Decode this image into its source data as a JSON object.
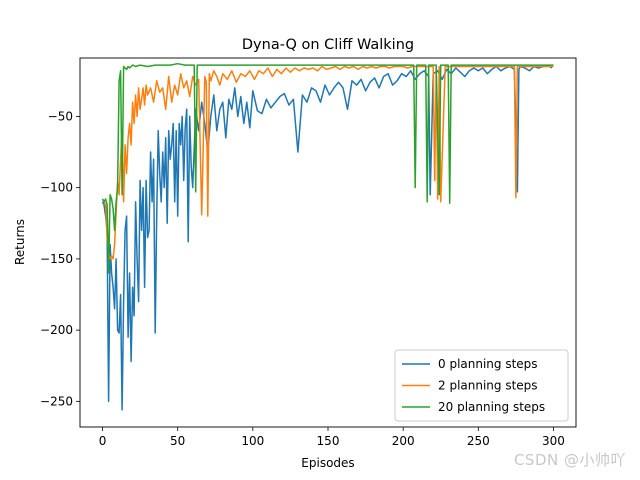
{
  "chart_data": {
    "type": "line",
    "title": "Dyna-Q on Cliff Walking",
    "xlabel": "Episodes",
    "ylabel": "Returns",
    "xlim": [
      -15,
      315
    ],
    "ylim": [
      -268,
      -9
    ],
    "xticks": [
      0,
      50,
      100,
      150,
      200,
      250,
      300
    ],
    "yticks": [
      -250,
      -200,
      -150,
      -100,
      -50
    ],
    "legend_position": "lower right",
    "series": [
      {
        "name": "0 planning steps",
        "color": "#1f77b4",
        "x": [
          0,
          1,
          2,
          3,
          4,
          5,
          6,
          7,
          8,
          9,
          10,
          11,
          12,
          13,
          14,
          15,
          16,
          17,
          18,
          19,
          20,
          21,
          22,
          23,
          24,
          25,
          26,
          27,
          28,
          29,
          30,
          31,
          32,
          33,
          34,
          35,
          36,
          37,
          38,
          39,
          40,
          41,
          42,
          43,
          44,
          45,
          46,
          47,
          48,
          49,
          50,
          51,
          52,
          53,
          54,
          55,
          56,
          57,
          58,
          59,
          60,
          62,
          64,
          66,
          68,
          70,
          72,
          74,
          76,
          78,
          80,
          82,
          84,
          86,
          88,
          90,
          92,
          94,
          96,
          98,
          100,
          103,
          106,
          109,
          112,
          115,
          118,
          121,
          124,
          127,
          130,
          133,
          136,
          139,
          142,
          145,
          148,
          151,
          154,
          157,
          160,
          163,
          166,
          169,
          172,
          175,
          178,
          181,
          184,
          187,
          190,
          193,
          196,
          199,
          202,
          205,
          208,
          211,
          214,
          217,
          218,
          220,
          223,
          226,
          229,
          232,
          235,
          238,
          241,
          244,
          247,
          250,
          253,
          256,
          259,
          262,
          265,
          268,
          271,
          274,
          276,
          277,
          278,
          281,
          284,
          287,
          290,
          293,
          296,
          299
        ],
        "values": [
          -110,
          -112,
          -120,
          -130,
          -250,
          -140,
          -160,
          -170,
          -185,
          -150,
          -200,
          -202,
          -175,
          -256,
          -180,
          -130,
          -120,
          -205,
          -160,
          -222,
          -170,
          -190,
          -110,
          -150,
          -180,
          -95,
          -130,
          -100,
          -170,
          -95,
          -135,
          -130,
          -75,
          -110,
          -80,
          -202,
          -120,
          -60,
          -90,
          -110,
          -75,
          -100,
          -65,
          -125,
          -60,
          -80,
          -70,
          -55,
          -110,
          -60,
          -120,
          -55,
          -70,
          -50,
          -95,
          -58,
          -45,
          -138,
          -50,
          -85,
          -100,
          -45,
          -60,
          -40,
          -55,
          -75,
          -50,
          -35,
          -60,
          -45,
          -40,
          -65,
          -38,
          -45,
          -30,
          -50,
          -36,
          -55,
          -40,
          -58,
          -32,
          -46,
          -48,
          -38,
          -44,
          -40,
          -36,
          -34,
          -42,
          -38,
          -75,
          -35,
          -40,
          -30,
          -32,
          -40,
          -28,
          -35,
          -30,
          -26,
          -30,
          -45,
          -25,
          -28,
          -24,
          -32,
          -26,
          -23,
          -30,
          -22,
          -20,
          -28,
          -25,
          -20,
          -22,
          -18,
          -24,
          -20,
          -18,
          -22,
          -105,
          -20,
          -18,
          -24,
          -17,
          -20,
          -16,
          -19,
          -22,
          -18,
          -16,
          -18,
          -16,
          -20,
          -17,
          -15,
          -18,
          -16,
          -15,
          -17,
          -103,
          -17,
          -15,
          -16,
          -18,
          -15,
          -16,
          -15,
          -14,
          -16
        ]
      },
      {
        "name": "2 planning steps",
        "color": "#ff7f0e",
        "x": [
          0,
          1,
          2,
          3,
          4,
          5,
          6,
          7,
          8,
          9,
          10,
          11,
          12,
          13,
          14,
          15,
          16,
          17,
          18,
          19,
          20,
          21,
          22,
          23,
          24,
          25,
          26,
          27,
          28,
          29,
          30,
          32,
          34,
          36,
          38,
          40,
          42,
          44,
          46,
          48,
          50,
          52,
          54,
          56,
          58,
          60,
          62,
          64,
          66,
          68,
          69,
          70,
          71,
          72,
          74,
          76,
          78,
          80,
          83,
          86,
          89,
          92,
          95,
          98,
          101,
          104,
          107,
          110,
          113,
          116,
          119,
          122,
          125,
          128,
          131,
          134,
          137,
          140,
          143,
          146,
          149,
          152,
          155,
          158,
          161,
          164,
          167,
          170,
          173,
          176,
          179,
          182,
          185,
          188,
          191,
          194,
          197,
          200,
          203,
          206,
          209,
          212,
          215,
          218,
          220,
          221,
          222,
          223,
          224,
          225,
          228,
          231,
          234,
          237,
          240,
          243,
          246,
          249,
          252,
          255,
          258,
          261,
          264,
          267,
          270,
          273,
          274,
          275,
          276,
          277,
          280,
          283,
          286,
          289,
          292,
          295,
          298,
          300
        ],
        "values": [
          -108,
          -110,
          -112,
          -135,
          -145,
          -150,
          -148,
          -150,
          -140,
          -118,
          -95,
          -105,
          -80,
          -60,
          -110,
          -70,
          -90,
          -65,
          -55,
          -70,
          -40,
          -55,
          -35,
          -50,
          -30,
          -45,
          -38,
          -30,
          -42,
          -28,
          -35,
          -30,
          -40,
          -25,
          -33,
          -30,
          -45,
          -22,
          -40,
          -28,
          -35,
          -20,
          -30,
          -25,
          -36,
          -22,
          -28,
          -24,
          -119,
          -22,
          -26,
          -120,
          -20,
          -25,
          -18,
          -22,
          -28,
          -20,
          -24,
          -18,
          -26,
          -20,
          -22,
          -18,
          -24,
          -18,
          -20,
          -16,
          -22,
          -17,
          -20,
          -16,
          -19,
          -16,
          -18,
          -16,
          -17,
          -16,
          -18,
          -15,
          -17,
          -16,
          -15,
          -17,
          -15,
          -16,
          -15,
          -17,
          -15,
          -16,
          -15,
          -16,
          -15,
          -15,
          -16,
          -15,
          -15,
          -15,
          -16,
          -15,
          -15,
          -15,
          -15,
          -15,
          -15,
          -95,
          -15,
          -108,
          -15,
          -110,
          -15,
          -15,
          -15,
          -15,
          -15,
          -15,
          -15,
          -15,
          -15,
          -15,
          -15,
          -15,
          -15,
          -15,
          -15,
          -15,
          -15,
          -107,
          -15,
          -15,
          -15,
          -15,
          -15,
          -15,
          -15,
          -15,
          -15,
          -15
        ]
      },
      {
        "name": "20 planning steps",
        "color": "#2ca02c",
        "x": [
          0,
          1,
          2,
          3,
          4,
          5,
          6,
          7,
          8,
          9,
          10,
          11,
          12,
          13,
          14,
          15,
          16,
          17,
          18,
          20,
          22,
          25,
          30,
          35,
          40,
          45,
          50,
          55,
          60,
          61,
          62,
          63,
          65,
          70,
          80,
          100,
          120,
          150,
          180,
          200,
          207,
          208,
          209,
          210,
          212,
          214,
          215,
          216,
          217,
          218,
          220,
          222,
          224,
          225,
          226,
          227,
          228,
          230,
          231,
          232,
          235,
          240,
          260,
          280,
          300
        ],
        "values": [
          -108,
          -110,
          -108,
          -112,
          -160,
          -105,
          -108,
          -115,
          -130,
          -110,
          -100,
          -25,
          -18,
          -105,
          -15,
          -16,
          -17,
          -15,
          -16,
          -14,
          -15,
          -14,
          -15,
          -14,
          -14,
          -14,
          -13,
          -14,
          -14,
          -14,
          -103,
          -14,
          -14,
          -14,
          -14,
          -14,
          -14,
          -14,
          -14,
          -14,
          -14,
          -100,
          -14,
          -14,
          -14,
          -14,
          -14,
          -110,
          -14,
          -14,
          -14,
          -14,
          -105,
          -14,
          -14,
          -14,
          -14,
          -14,
          -111,
          -14,
          -14,
          -14,
          -14,
          -14,
          -14
        ]
      }
    ]
  },
  "watermark": "CSDN @小帅吖"
}
